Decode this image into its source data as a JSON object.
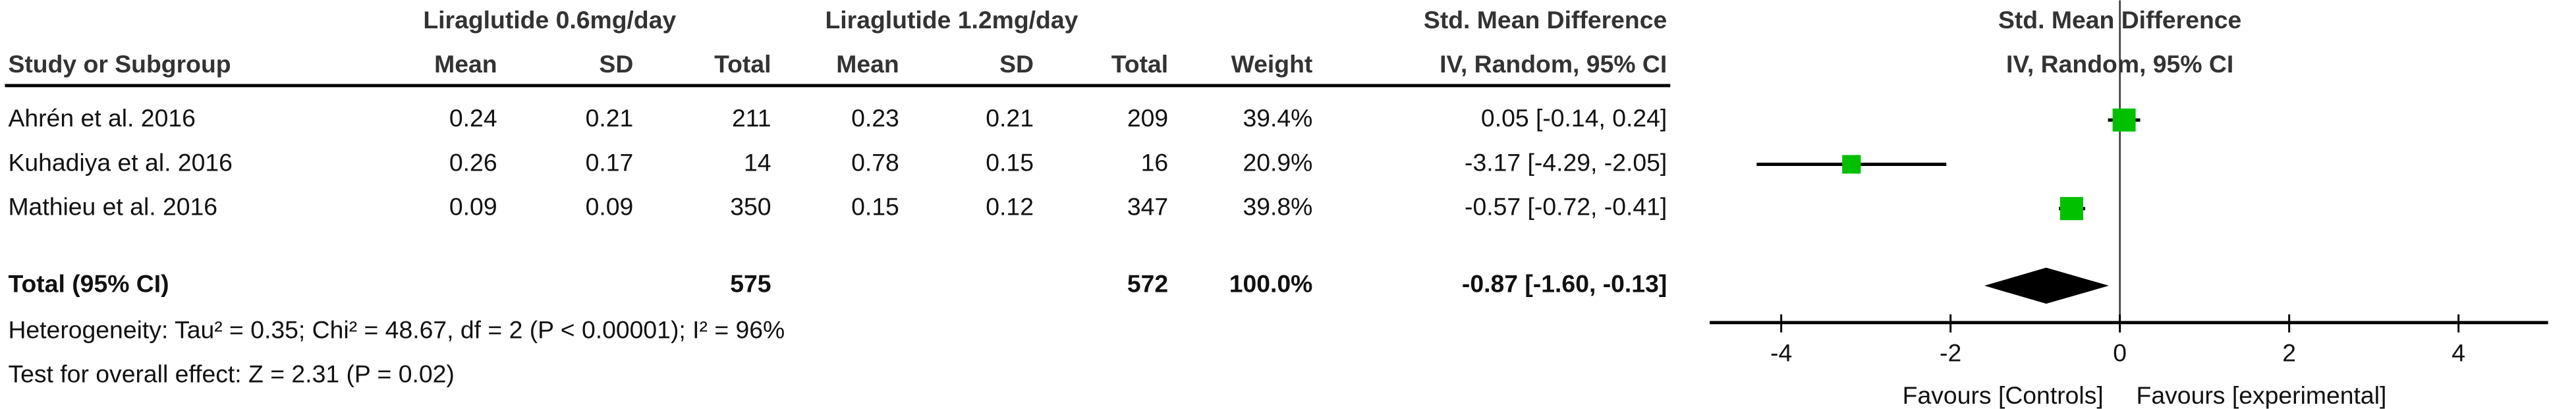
{
  "table": {
    "group1_label": "Liraglutide 0.6mg/day",
    "group2_label": "Liraglutide 1.2mg/day",
    "effect_header": "Std. Mean Difference",
    "effect_subheader": "IV, Random, 95% CI",
    "columns": [
      "Study or Subgroup",
      "Mean",
      "SD",
      "Total",
      "Mean",
      "SD",
      "Total",
      "Weight"
    ],
    "rows": [
      {
        "study": "Ahrén et al. 2016",
        "mean1": "0.24",
        "sd1": "0.21",
        "total1": "211",
        "mean2": "0.23",
        "sd2": "0.21",
        "total2": "209",
        "weight": "39.4%",
        "ci_text": "0.05 [-0.14, 0.24]"
      },
      {
        "study": "Kuhadiya et al. 2016",
        "mean1": "0.26",
        "sd1": "0.17",
        "total1": "14",
        "mean2": "0.78",
        "sd2": "0.15",
        "total2": "16",
        "weight": "20.9%",
        "ci_text": "-3.17 [-4.29, -2.05]"
      },
      {
        "study": "Mathieu et al. 2016",
        "mean1": "0.09",
        "sd1": "0.09",
        "total1": "350",
        "mean2": "0.15",
        "sd2": "0.12",
        "total2": "347",
        "weight": "39.8%",
        "ci_text": "-0.57 [-0.72, -0.41]"
      }
    ],
    "total": {
      "label": "Total (95% CI)",
      "total1": "575",
      "total2": "572",
      "weight": "100.0%",
      "ci_text": "-0.87 [-1.60, -0.13]"
    },
    "heterogeneity": "Heterogeneity: Tau² = 0.35; Chi² = 48.67, df = 2 (P < 0.00001); I² = 96%",
    "overall_effect": "Test for overall effect: Z = 2.31 (P = 0.02)"
  },
  "chart_data": {
    "type": "forest",
    "title": "Std. Mean Difference",
    "subtitle": "IV, Random, 95% CI",
    "xlim": [
      -4.5,
      4.5
    ],
    "xticks": [
      "-4",
      "-2",
      "0",
      "2",
      "4"
    ],
    "xtick_values": [
      -4,
      -2,
      0,
      2,
      4
    ],
    "left_label": "Favours [Controls]",
    "right_label": "Favours [experimental]",
    "marker_color": "#00c000",
    "studies": [
      {
        "name": "Ahrén et al. 2016",
        "smd": 0.05,
        "lower": -0.14,
        "upper": 0.24,
        "weight": 39.4
      },
      {
        "name": "Kuhadiya et al. 2016",
        "smd": -3.17,
        "lower": -4.29,
        "upper": -2.05,
        "weight": 20.9
      },
      {
        "name": "Mathieu et al. 2016",
        "smd": -0.57,
        "lower": -0.72,
        "upper": -0.41,
        "weight": 39.8
      }
    ],
    "pooled": {
      "smd": -0.87,
      "lower": -1.6,
      "upper": -0.13
    }
  }
}
